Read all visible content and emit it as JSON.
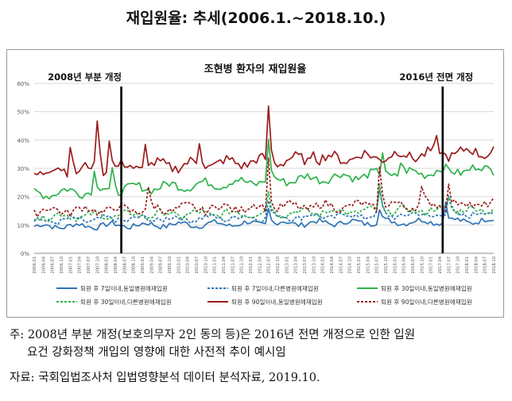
{
  "page": {
    "heading": "재입원율: 추세(2006.1.~2018.10.)",
    "note_line1": "주: 2008년 부분 개정(보호의무자 2인 동의 등)은 2016년 전면 개정으로 인한 입원",
    "note_line2": "요건 강화정책 개입의 영향에 대한 사전적 추이 예시임",
    "source": "자료: 국회입법조사처 입법영향분석 데이터 분석자료, 2019.10."
  },
  "colors": {
    "blue": "#2e75b6",
    "green": "#2db24a",
    "darkred": "#9b1c1c",
    "grid": "#d9d9d9",
    "axis": "#595959"
  },
  "chart_data": {
    "type": "line",
    "title": "조현병 환자의 재입원율",
    "x_start": "2006-01",
    "x_end": "2018-10",
    "x_tick_labels": [
      "2006.01",
      "2006.04",
      "2006.07",
      "2006.10",
      "2007.01",
      "2007.04",
      "2007.07",
      "2007.10",
      "2008.01",
      "2008.04",
      "2008.07",
      "2008.10",
      "2009.01",
      "2009.04",
      "2009.07",
      "2009.10",
      "2010.01",
      "2010.04",
      "2010.07",
      "2010.10",
      "2011.01",
      "2011.04",
      "2011.07",
      "2011.10",
      "2012.01",
      "2012.04",
      "2012.07",
      "2012.10",
      "2013.01",
      "2013.04",
      "2013.07",
      "2013.10",
      "2014.01",
      "2014.04",
      "2014.07",
      "2014.10",
      "2015.01",
      "2015.04",
      "2015.07",
      "2015.10",
      "2016.01",
      "2016.04",
      "2016.07",
      "2016.10",
      "2017.01",
      "2017.04",
      "2017.07",
      "2017.10",
      "2018.01",
      "2018.04",
      "2018.07",
      "2018.10"
    ],
    "y_ticks": [
      "0%",
      "10%",
      "20%",
      "30%",
      "40%",
      "50%",
      "60%"
    ],
    "ylim": [
      0,
      60
    ],
    "annotations": [
      {
        "label": "2008년 부분 개정",
        "x": "2008-06"
      },
      {
        "label": "2016년 전면 개정",
        "x": "2017-05"
      }
    ],
    "legend_position": "bottom",
    "series": [
      {
        "name": "퇴원 후 7일이내,동일병원에재입원",
        "color": "#2e75b6",
        "style": "solid",
        "base": 9.5,
        "end": 11.5,
        "noise": 1.2,
        "spikes": [
          [
            "2012-07",
            5.5
          ],
          [
            "2015-08",
            5
          ],
          [
            "2017-06",
            7
          ]
        ]
      },
      {
        "name": "퇴원 후 7일이내,다른병원에재입원",
        "color": "#2e75b6",
        "style": "dashed",
        "base": 11.5,
        "end": 14,
        "noise": 1.3,
        "spikes": [
          [
            "2012-07",
            6
          ],
          [
            "2015-08",
            8
          ],
          [
            "2017-07",
            6
          ]
        ]
      },
      {
        "name": "퇴원 후 30일이내,동일병원에재입원",
        "color": "#2db24a",
        "style": "solid",
        "base": 21,
        "end": 30,
        "noise": 1.8,
        "spikes": [
          [
            "2007-09",
            6
          ],
          [
            "2008-03",
            7
          ],
          [
            "2012-07",
            13
          ],
          [
            "2015-09",
            8
          ],
          [
            "2016-03",
            4
          ]
        ]
      },
      {
        "name": "퇴원 후 30일이내,다른병원에재입원",
        "color": "#2db24a",
        "style": "dashed",
        "base": 13,
        "end": 15.5,
        "noise": 1.5,
        "spikes": [
          [
            "2012-07",
            7
          ],
          [
            "2015-08",
            9
          ],
          [
            "2017-07",
            5
          ]
        ]
      },
      {
        "name": "퇴원 후 90일이내,동일병원에재입원",
        "color": "#9b1c1c",
        "style": "solid",
        "base": 29,
        "end": 36,
        "noise": 2.2,
        "spikes": [
          [
            "2007-01",
            10
          ],
          [
            "2007-10",
            18
          ],
          [
            "2008-02",
            12
          ],
          [
            "2009-02",
            8
          ],
          [
            "2010-08",
            8
          ],
          [
            "2012-07",
            18
          ],
          [
            "2013-10",
            5
          ],
          [
            "2017-03",
            4
          ]
        ]
      },
      {
        "name": "퇴원 후 90일이내,다른병원에재입원",
        "color": "#9b1c1c",
        "style": "dashed",
        "base": 15,
        "end": 17.5,
        "noise": 1.8,
        "spikes": [
          [
            "2009-03",
            6
          ],
          [
            "2012-07",
            17
          ],
          [
            "2015-08",
            14
          ],
          [
            "2016-10",
            5
          ],
          [
            "2017-07",
            7
          ]
        ]
      }
    ]
  }
}
